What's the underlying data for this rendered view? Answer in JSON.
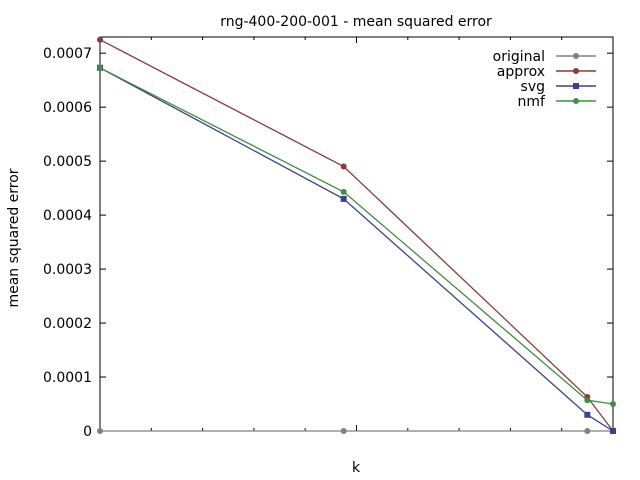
{
  "chart_data": {
    "type": "line",
    "title": "rng-400-200-001 - mean squared error",
    "xlabel": "k",
    "ylabel": "mean squared error",
    "xlim": [
      0,
      200
    ],
    "ylim": [
      0,
      0.00073
    ],
    "x_ticks_labeled": false,
    "y_ticks": [
      {
        "value": 0,
        "label": "0"
      },
      {
        "value": 0.0001,
        "label": "0.0001"
      },
      {
        "value": 0.0002,
        "label": "0.0002"
      },
      {
        "value": 0.0003,
        "label": "0.0003"
      },
      {
        "value": 0.0004,
        "label": "0.0004"
      },
      {
        "value": 0.0005,
        "label": "0.0005"
      },
      {
        "value": 0.0006,
        "label": "0.0006"
      },
      {
        "value": 0.0007,
        "label": "0.0007"
      }
    ],
    "grid": false,
    "legend_position": "top-right",
    "series": [
      {
        "name": "original",
        "color": "#808080",
        "marker": "circle",
        "x": [
          0,
          95,
          190,
          200
        ],
        "y": [
          0,
          0,
          0,
          0
        ]
      },
      {
        "name": "approx",
        "color": "#8b3a3a",
        "marker": "circle",
        "x": [
          0,
          95,
          190,
          200
        ],
        "y": [
          0.000725,
          0.00049,
          6.3e-05,
          0
        ]
      },
      {
        "name": "svg",
        "color": "#3f3f8f",
        "marker": "square",
        "x": [
          0,
          95,
          190,
          200
        ],
        "y": [
          0.000673,
          0.00043,
          3e-05,
          0
        ]
      },
      {
        "name": "nmf",
        "color": "#3f8f3f",
        "marker": "circle",
        "x": [
          0,
          95,
          190,
          200
        ],
        "y": [
          0.000673,
          0.000443,
          5.7e-05,
          5e-05
        ]
      }
    ]
  }
}
